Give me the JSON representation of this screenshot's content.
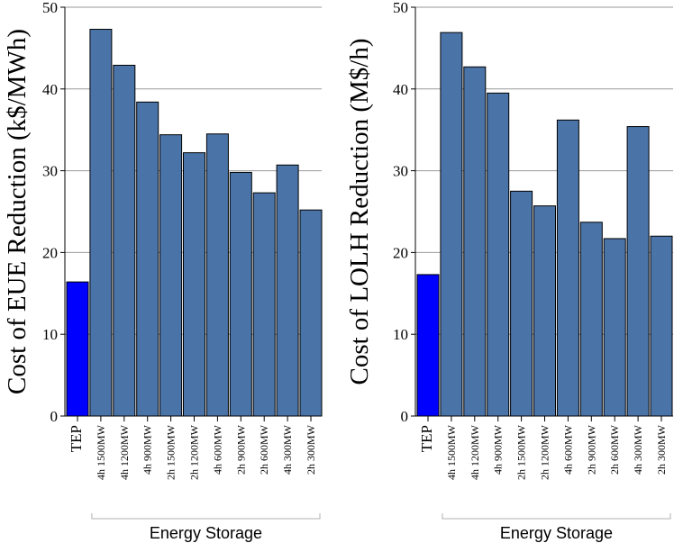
{
  "colors": {
    "highlight": "#0000ff",
    "bar": "#4a74a8",
    "grid": "#999999",
    "axis": "#000000",
    "bracket": "#b0b0b0"
  },
  "chart_data": [
    {
      "type": "bar",
      "ylabel": "Cost of EUE Reduction (k$/MWh)",
      "ylim": [
        0,
        50
      ],
      "yticks": [
        0,
        10,
        20,
        30,
        40,
        50
      ],
      "grid": true,
      "categories": [
        "TEP",
        "4h 1500MW",
        "4h 1200MW",
        "4h 900MW",
        "2h 1500MW",
        "2h 1200MW",
        "4h 600MW",
        "2h 900MW",
        "2h 600MW",
        "4h 300MW",
        "2h 300MW"
      ],
      "values": [
        16.4,
        47.3,
        42.9,
        38.4,
        34.4,
        32.2,
        34.5,
        29.8,
        27.3,
        30.7,
        25.2
      ],
      "highlight_index": 0,
      "group_label": "Energy Storage"
    },
    {
      "type": "bar",
      "ylabel": "Cost of LOLH Reduction (M$/h)",
      "ylim": [
        0,
        50
      ],
      "yticks": [
        0,
        10,
        20,
        30,
        40,
        50
      ],
      "grid": true,
      "categories": [
        "TEP",
        "4h 1500MW",
        "4h 1200MW",
        "4h 900MW",
        "2h 1500MW",
        "2h 1200MW",
        "4h 600MW",
        "2h 900MW",
        "2h 600MW",
        "4h 300MW",
        "2h 300MW"
      ],
      "values": [
        17.3,
        46.9,
        42.7,
        39.5,
        27.5,
        25.7,
        36.2,
        23.7,
        21.7,
        35.4,
        22.0
      ],
      "highlight_index": 0,
      "group_label": "Energy Storage"
    }
  ]
}
